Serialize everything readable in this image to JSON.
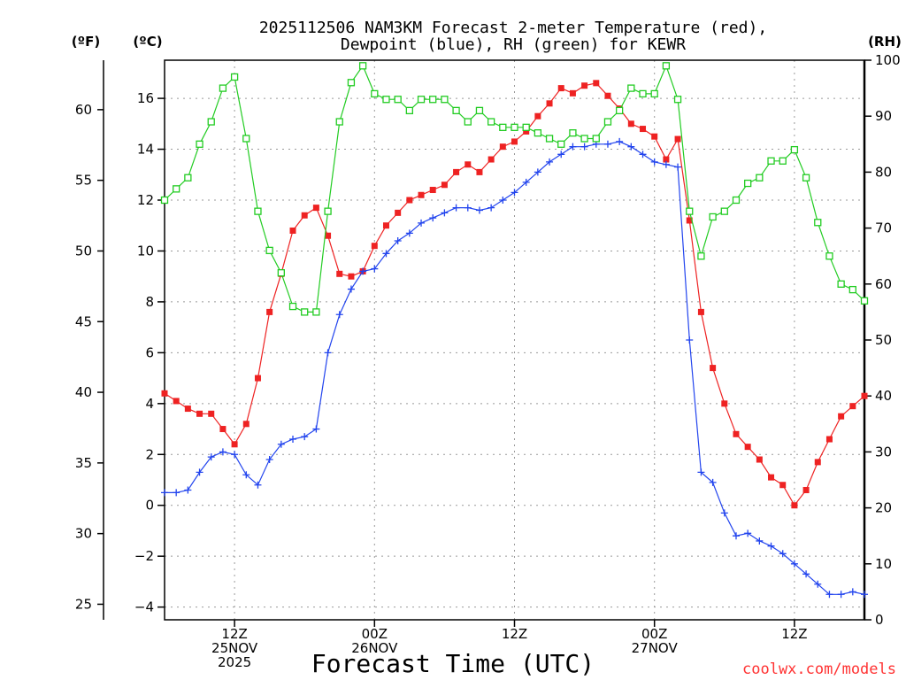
{
  "chart_data": {
    "type": "line",
    "title_lines": [
      "2025112506 NAM3KM Forecast 2-meter Temperature (red),",
      "Dewpoint (blue), RH (green) for KEWR"
    ],
    "units": {
      "fahrenheit": "(ºF)",
      "celsius": "(ºC)",
      "rh": "(RH)"
    },
    "xlabel": "Forecast Time (UTC)",
    "credit": "coolwx.com/models",
    "x_hours_range": [
      1,
      61
    ],
    "celsius_range": [
      -4.5,
      17.5
    ],
    "rh_range": [
      0,
      100
    ],
    "celsius_ticks": [
      "-4",
      "-2",
      "0",
      "2",
      "4",
      "6",
      "8",
      "10",
      "12",
      "14",
      "16"
    ],
    "fahrenheit_ticks": [
      "25",
      "30",
      "35",
      "40",
      "45",
      "50",
      "55",
      "60"
    ],
    "rh_ticks": [
      "0",
      "10",
      "20",
      "30",
      "40",
      "50",
      "60",
      "70",
      "80",
      "90",
      "100"
    ],
    "x_ticks": [
      {
        "hour": 7,
        "lines": [
          "12Z",
          "25NOV",
          "2025"
        ]
      },
      {
        "hour": 19,
        "lines": [
          "00Z",
          "26NOV"
        ]
      },
      {
        "hour": 31,
        "lines": [
          "12Z"
        ]
      },
      {
        "hour": 43,
        "lines": [
          "00Z",
          "27NOV"
        ]
      },
      {
        "hour": 55,
        "lines": [
          "12Z"
        ]
      }
    ],
    "series": [
      {
        "name": "2-meter Temperature",
        "color": "#ee2222",
        "marker": "filled-square",
        "x": [
          1,
          2,
          3,
          4,
          5,
          6,
          7,
          8,
          9,
          10,
          11,
          12,
          13,
          14,
          15,
          16,
          17,
          18,
          19,
          20,
          21,
          22,
          23,
          24,
          25,
          26,
          27,
          28,
          29,
          30,
          31,
          32,
          33,
          34,
          35,
          36,
          37,
          38,
          39,
          40,
          41,
          42,
          43,
          44,
          45,
          46,
          47,
          48,
          49,
          50,
          51,
          52,
          53,
          54,
          55,
          56,
          57,
          58,
          59,
          60,
          61
        ],
        "values": [
          4.4,
          4.1,
          3.8,
          3.6,
          3.6,
          3.0,
          2.4,
          3.2,
          5.0,
          7.6,
          9.1,
          10.8,
          11.4,
          11.7,
          10.6,
          9.1,
          9.0,
          9.2,
          10.2,
          11.0,
          11.5,
          12.0,
          12.2,
          12.4,
          12.6,
          13.1,
          13.4,
          13.1,
          13.6,
          14.1,
          14.3,
          14.7,
          15.3,
          15.8,
          16.4,
          16.2,
          16.5,
          16.6,
          16.1,
          15.6,
          15.0,
          14.8,
          14.5,
          13.6,
          14.4,
          11.2,
          7.6,
          5.4,
          4.0,
          2.8,
          2.3,
          1.8,
          1.1,
          0.8,
          0.0,
          0.6,
          1.7,
          2.6,
          3.5,
          3.9,
          4.3
        ]
      },
      {
        "name": "Dewpoint",
        "color": "#2244ee",
        "marker": "plus",
        "x": [
          1,
          2,
          3,
          4,
          5,
          6,
          7,
          8,
          9,
          10,
          11,
          12,
          13,
          14,
          15,
          16,
          17,
          18,
          19,
          20,
          21,
          22,
          23,
          24,
          25,
          26,
          27,
          28,
          29,
          30,
          31,
          32,
          33,
          34,
          35,
          36,
          37,
          38,
          39,
          40,
          41,
          42,
          43,
          44,
          45,
          46,
          47,
          48,
          49,
          50,
          51,
          52,
          53,
          54,
          55,
          56,
          57,
          58,
          59,
          60,
          61
        ],
        "values": [
          0.5,
          0.5,
          0.6,
          1.3,
          1.9,
          2.1,
          2.0,
          1.2,
          0.8,
          1.8,
          2.4,
          2.6,
          2.7,
          3.0,
          6.0,
          7.5,
          8.5,
          9.2,
          9.3,
          9.9,
          10.4,
          10.7,
          11.1,
          11.3,
          11.5,
          11.7,
          11.7,
          11.6,
          11.7,
          12.0,
          12.3,
          12.7,
          13.1,
          13.5,
          13.8,
          14.1,
          14.1,
          14.2,
          14.2,
          14.3,
          14.1,
          13.8,
          13.5,
          13.4,
          13.3,
          6.5,
          1.3,
          0.9,
          -0.3,
          -1.2,
          -1.1,
          -1.4,
          -1.6,
          -1.9,
          -2.3,
          -2.7,
          -3.1,
          -3.5,
          -3.5,
          -3.4,
          -3.5
        ]
      },
      {
        "name": "RH",
        "color": "#22cc22",
        "marker": "open-square",
        "x": [
          1,
          2,
          3,
          4,
          5,
          6,
          7,
          8,
          9,
          10,
          11,
          12,
          13,
          14,
          15,
          16,
          17,
          18,
          19,
          20,
          21,
          22,
          23,
          24,
          25,
          26,
          27,
          28,
          29,
          30,
          31,
          32,
          33,
          34,
          35,
          36,
          37,
          38,
          39,
          40,
          41,
          42,
          43,
          44,
          45,
          46,
          47,
          48,
          49,
          50,
          51,
          52,
          53,
          54,
          55,
          56,
          57,
          58,
          59,
          60,
          61
        ],
        "values": [
          75,
          77,
          79,
          85,
          89,
          95,
          97,
          86,
          73,
          66,
          62,
          56,
          55,
          55,
          73,
          89,
          96,
          99,
          94,
          93,
          93,
          91,
          93,
          93,
          93,
          91,
          89,
          91,
          89,
          88,
          88,
          88,
          87,
          86,
          85,
          87,
          86,
          86,
          89,
          91,
          95,
          94,
          94,
          99,
          93,
          73,
          65,
          72,
          73,
          75,
          78,
          79,
          82,
          82,
          84,
          79,
          71,
          65,
          60,
          59,
          57
        ]
      }
    ]
  }
}
